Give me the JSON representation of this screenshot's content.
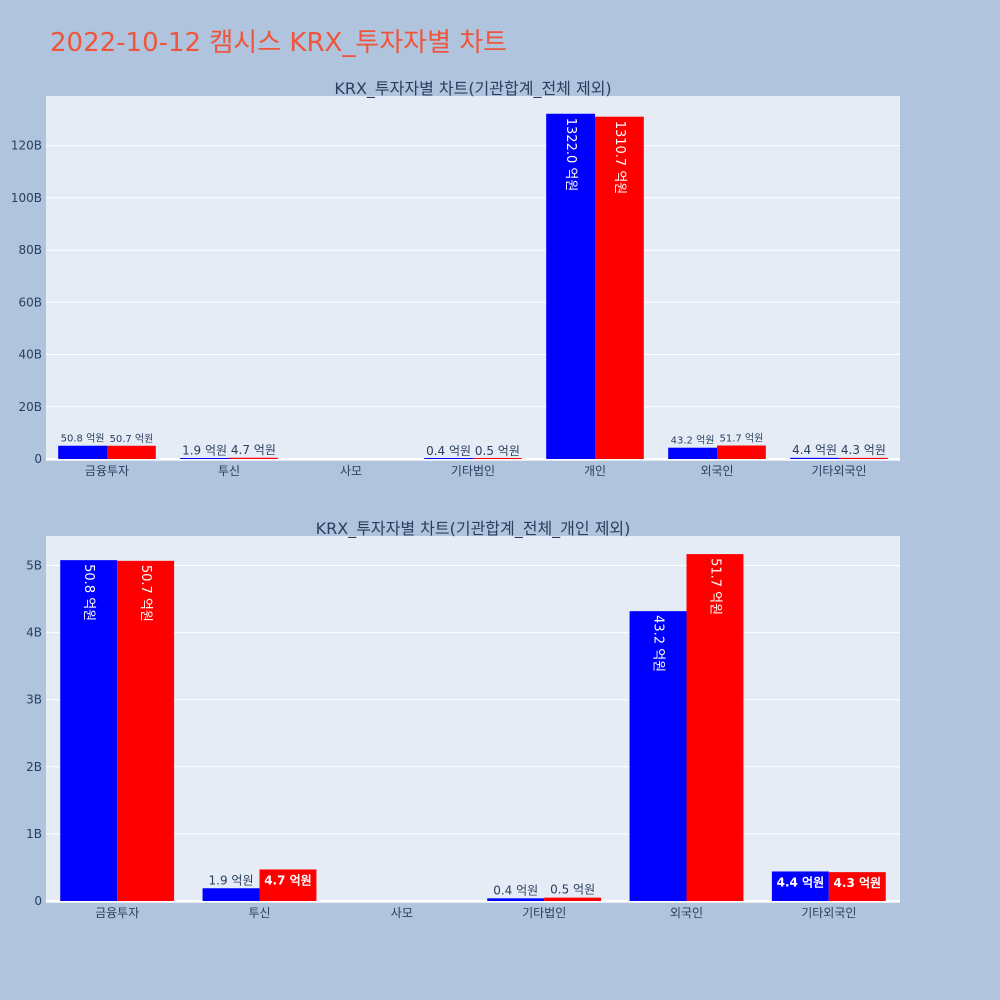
{
  "page": {
    "title": "2022-10-12 캠시스 KRX_투자자별 차트"
  },
  "colors": {
    "background": "#b0c4de",
    "plot_bg": "#e5ecf6",
    "grid": "#ffffff",
    "title": "#ef553b",
    "axis_text": "#2a3f5f",
    "series_a": "#0000ff",
    "series_b": "#ff0000"
  },
  "chart_data": [
    {
      "type": "bar",
      "title": "KRX_투자자별 차트(기관합계_전체 제외)",
      "categories": [
        "금융투자",
        "투신",
        "사모",
        "기타법인",
        "개인",
        "외국인",
        "기타외국인"
      ],
      "series": [
        {
          "values": [
            5080000000,
            190000000,
            0,
            40000000,
            132200000000,
            4320000000,
            440000000
          ],
          "labels": [
            "50.8 억원",
            "1.9 억원",
            "",
            "0.4 억원",
            "1322.0 억원",
            "43.2 억원",
            "4.4 억원"
          ]
        },
        {
          "values": [
            5070000000,
            470000000,
            0,
            50000000,
            131070000000,
            5170000000,
            430000000
          ],
          "labels": [
            "50.7 억원",
            "4.7 억원",
            "",
            "0.5 억원",
            "1310.7 억원",
            "51.7 억원",
            "4.3 억원"
          ]
        }
      ],
      "yticks": [
        "0",
        "20B",
        "40B",
        "60B",
        "80B",
        "100B",
        "120B"
      ],
      "ytick_values": [
        0,
        20000000000,
        40000000000,
        60000000000,
        80000000000,
        100000000000,
        120000000000
      ],
      "ylim": [
        0,
        139000000000
      ],
      "grid": true
    },
    {
      "type": "bar",
      "title": "KRX_투자자별 차트(기관합계_전체_개인 제외)",
      "categories": [
        "금융투자",
        "투신",
        "사모",
        "기타법인",
        "외국인",
        "기타외국인"
      ],
      "series": [
        {
          "values": [
            5080000000,
            190000000,
            0,
            40000000,
            4320000000,
            440000000
          ],
          "labels": [
            "50.8 억원",
            "1.9 억원",
            "",
            "0.4 억원",
            "43.2 억원",
            "4.4 억원"
          ]
        },
        {
          "values": [
            5070000000,
            470000000,
            0,
            50000000,
            5170000000,
            430000000
          ],
          "labels": [
            "50.7 억원",
            "4.7 억원",
            "",
            "0.5 억원",
            "51.7 억원",
            "4.3 억원"
          ]
        }
      ],
      "yticks": [
        "0",
        "1B",
        "2B",
        "3B",
        "4B",
        "5B"
      ],
      "ytick_values": [
        0,
        1000000000,
        2000000000,
        3000000000,
        4000000000,
        5000000000
      ],
      "ylim": [
        0,
        5440000000
      ],
      "grid": true
    }
  ]
}
